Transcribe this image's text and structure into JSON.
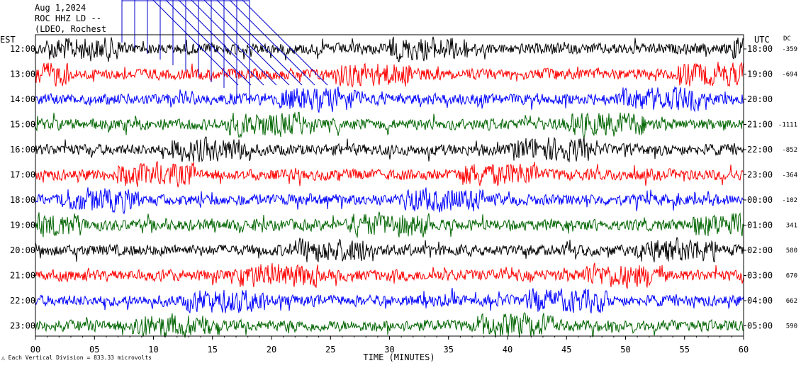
{
  "header": {
    "date": "Aug 1,2024",
    "station": "ROC HHZ LD --",
    "network": "(LDEO, Rochest"
  },
  "footnote": "Each Vertical Division =  833.33 microvolts",
  "colors": {
    "trace": [
      "#000000",
      "#ff0000",
      "#0000ff",
      "#006400"
    ],
    "overlay": "#0000cc"
  },
  "chart_data": {
    "type": "line",
    "title": "",
    "left_axis_label": "EST",
    "right_axis_label": "UTC",
    "dc_label": "DC",
    "xlabel": "TIME (MINUTES)",
    "x_ticks": [
      "00",
      "05",
      "10",
      "15",
      "20",
      "25",
      "30",
      "35",
      "40",
      "45",
      "50",
      "55",
      "60"
    ],
    "xlim": [
      0,
      60
    ],
    "rows": [
      {
        "est": "12:00",
        "utc": "18:00",
        "dc": "-359"
      },
      {
        "est": "13:00",
        "utc": "19:00",
        "dc": "-694"
      },
      {
        "est": "14:00",
        "utc": "20:00",
        "dc": ""
      },
      {
        "est": "15:00",
        "utc": "21:00",
        "dc": "-1111"
      },
      {
        "est": "16:00",
        "utc": "22:00",
        "dc": "-852"
      },
      {
        "est": "17:00",
        "utc": "23:00",
        "dc": "-364"
      },
      {
        "est": "18:00",
        "utc": "00:00",
        "dc": "-102"
      },
      {
        "est": "19:00",
        "utc": "01:00",
        "dc": "341"
      },
      {
        "est": "20:00",
        "utc": "02:00",
        "dc": "580"
      },
      {
        "est": "21:00",
        "utc": "03:00",
        "dc": "670"
      },
      {
        "est": "22:00",
        "utc": "04:00",
        "dc": "662"
      },
      {
        "est": "23:00",
        "utc": "05:00",
        "dc": "590"
      }
    ],
    "grid": false
  }
}
